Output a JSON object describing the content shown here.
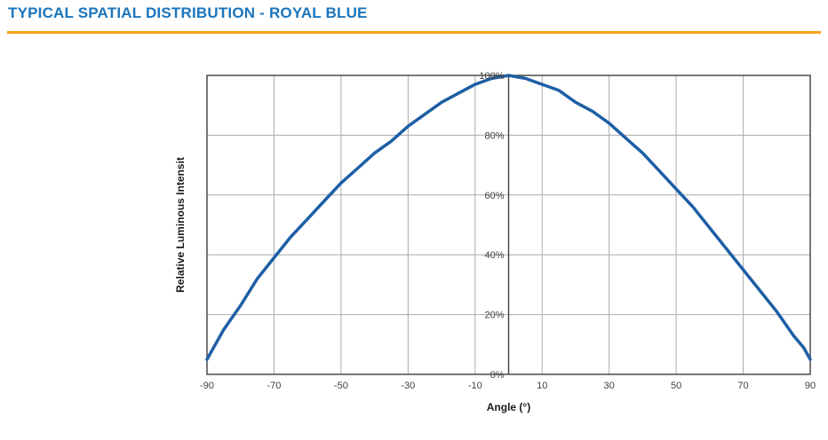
{
  "page": {
    "title": "TYPICAL SPATIAL DISTRIBUTION - ROYAL BLUE",
    "accent_color": "#1B75BC",
    "divider_color": "#F9A11B"
  },
  "chart_data": {
    "type": "line",
    "title": "Typical Spatial Distribution - Royal Blue",
    "xlabel": "Angle (°)",
    "ylabel": "Relative Luminous Intensit",
    "xlim": [
      -90,
      90
    ],
    "ylim": [
      0,
      100
    ],
    "grid": true,
    "legend": "none",
    "line_color": "#1D5FA5",
    "grid_color": "#ABABAB",
    "axis_color": "#3F3F3F",
    "x_ticks": [
      -90,
      -70,
      -50,
      -30,
      -10,
      10,
      30,
      50,
      70,
      90
    ],
    "x_tick_labels": [
      "-90",
      "-70",
      "-50",
      "-30",
      "-10",
      "10",
      "30",
      "50",
      "70",
      "90"
    ],
    "y_ticks": [
      0,
      20,
      40,
      60,
      80,
      100
    ],
    "y_tick_labels": [
      "0%",
      "20%",
      "40%",
      "60%",
      "80%",
      "100%"
    ],
    "series": [
      {
        "name": "Relative Luminous Intensity",
        "x": [
          -90,
          -88,
          -85,
          -80,
          -75,
          -70,
          -65,
          -60,
          -55,
          -50,
          -45,
          -40,
          -35,
          -30,
          -25,
          -20,
          -15,
          -10,
          -5,
          0,
          5,
          10,
          15,
          20,
          25,
          30,
          35,
          40,
          45,
          50,
          55,
          60,
          65,
          70,
          75,
          80,
          85,
          88,
          90
        ],
        "y": [
          5,
          9,
          15,
          23,
          32,
          39,
          46,
          52,
          58,
          64,
          69,
          74,
          78,
          83,
          87,
          91,
          94,
          97,
          99,
          100,
          99,
          97,
          95,
          91,
          88,
          84,
          79,
          74,
          68,
          62,
          56,
          49,
          42,
          35,
          28,
          21,
          13,
          9,
          5
        ]
      }
    ]
  }
}
